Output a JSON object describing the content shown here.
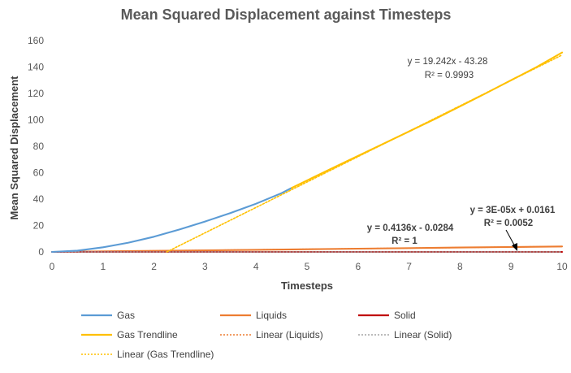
{
  "chart_data": {
    "type": "line",
    "title": "Mean Squared Displacement against Timesteps",
    "xlabel": "Timesteps",
    "ylabel": "Mean Squared Displacement",
    "xlim": [
      0,
      10
    ],
    "ylim": [
      0,
      160
    ],
    "xticks": [
      "0",
      "1",
      "2",
      "3",
      "4",
      "5",
      "6",
      "7",
      "8",
      "9",
      "10"
    ],
    "yticks": [
      "0",
      "20",
      "40",
      "60",
      "80",
      "100",
      "120",
      "140",
      "160"
    ],
    "grid": false,
    "legend_position": "bottom",
    "series": [
      {
        "name": "Gas",
        "color": "#5B9BD5",
        "style": "solid",
        "x": [
          0,
          0.5,
          1.0,
          1.5,
          2.0,
          2.5,
          3.0,
          3.5,
          4.0,
          4.5,
          4.7
        ],
        "y": [
          0,
          1.0,
          3.5,
          7.0,
          11.5,
          17.0,
          23.0,
          29.5,
          36.5,
          44.5,
          48.5
        ]
      },
      {
        "name": "Liquids",
        "color": "#ED7D31",
        "style": "solid",
        "x": [
          0,
          2,
          4,
          6,
          8,
          10
        ],
        "y": [
          0,
          0.8,
          1.6,
          2.45,
          3.3,
          4.1
        ]
      },
      {
        "name": "Solid",
        "color": "#C00000",
        "style": "solid",
        "x": [
          0,
          10
        ],
        "y": [
          0.016,
          0.0164
        ]
      },
      {
        "name": "Gas Trendline",
        "color": "#FFC000",
        "style": "solid",
        "x": [
          4.7,
          5.5,
          6.5,
          7.5,
          8.5,
          9.5,
          10
        ],
        "y": [
          48.5,
          63.5,
          82.0,
          100.5,
          120.0,
          140.0,
          151.0
        ]
      },
      {
        "name": "Linear (Liquids)",
        "color": "#ED7D31",
        "style": "dotted",
        "x": [
          0,
          10
        ],
        "y": [
          0,
          4.11
        ]
      },
      {
        "name": "Linear (Solid)",
        "color": "#A5A5A5",
        "style": "dotted",
        "x": [
          0,
          10
        ],
        "y": [
          0.016,
          0.0164
        ]
      },
      {
        "name": "Linear (Gas Trendline)",
        "color": "#FFC000",
        "style": "dotted",
        "x": [
          2.25,
          10
        ],
        "y": [
          0,
          149.1
        ]
      }
    ],
    "annotations": {
      "gas_equation": "y = 19.242x - 43.28",
      "gas_r2": "R² = 0.9993",
      "liquids_equation": "y = 0.4136x - 0.0284",
      "liquids_r2": "R² = 1",
      "solid_equation": "y = 3E-05x + 0.0161",
      "solid_r2": "R² = 0.0052"
    }
  }
}
